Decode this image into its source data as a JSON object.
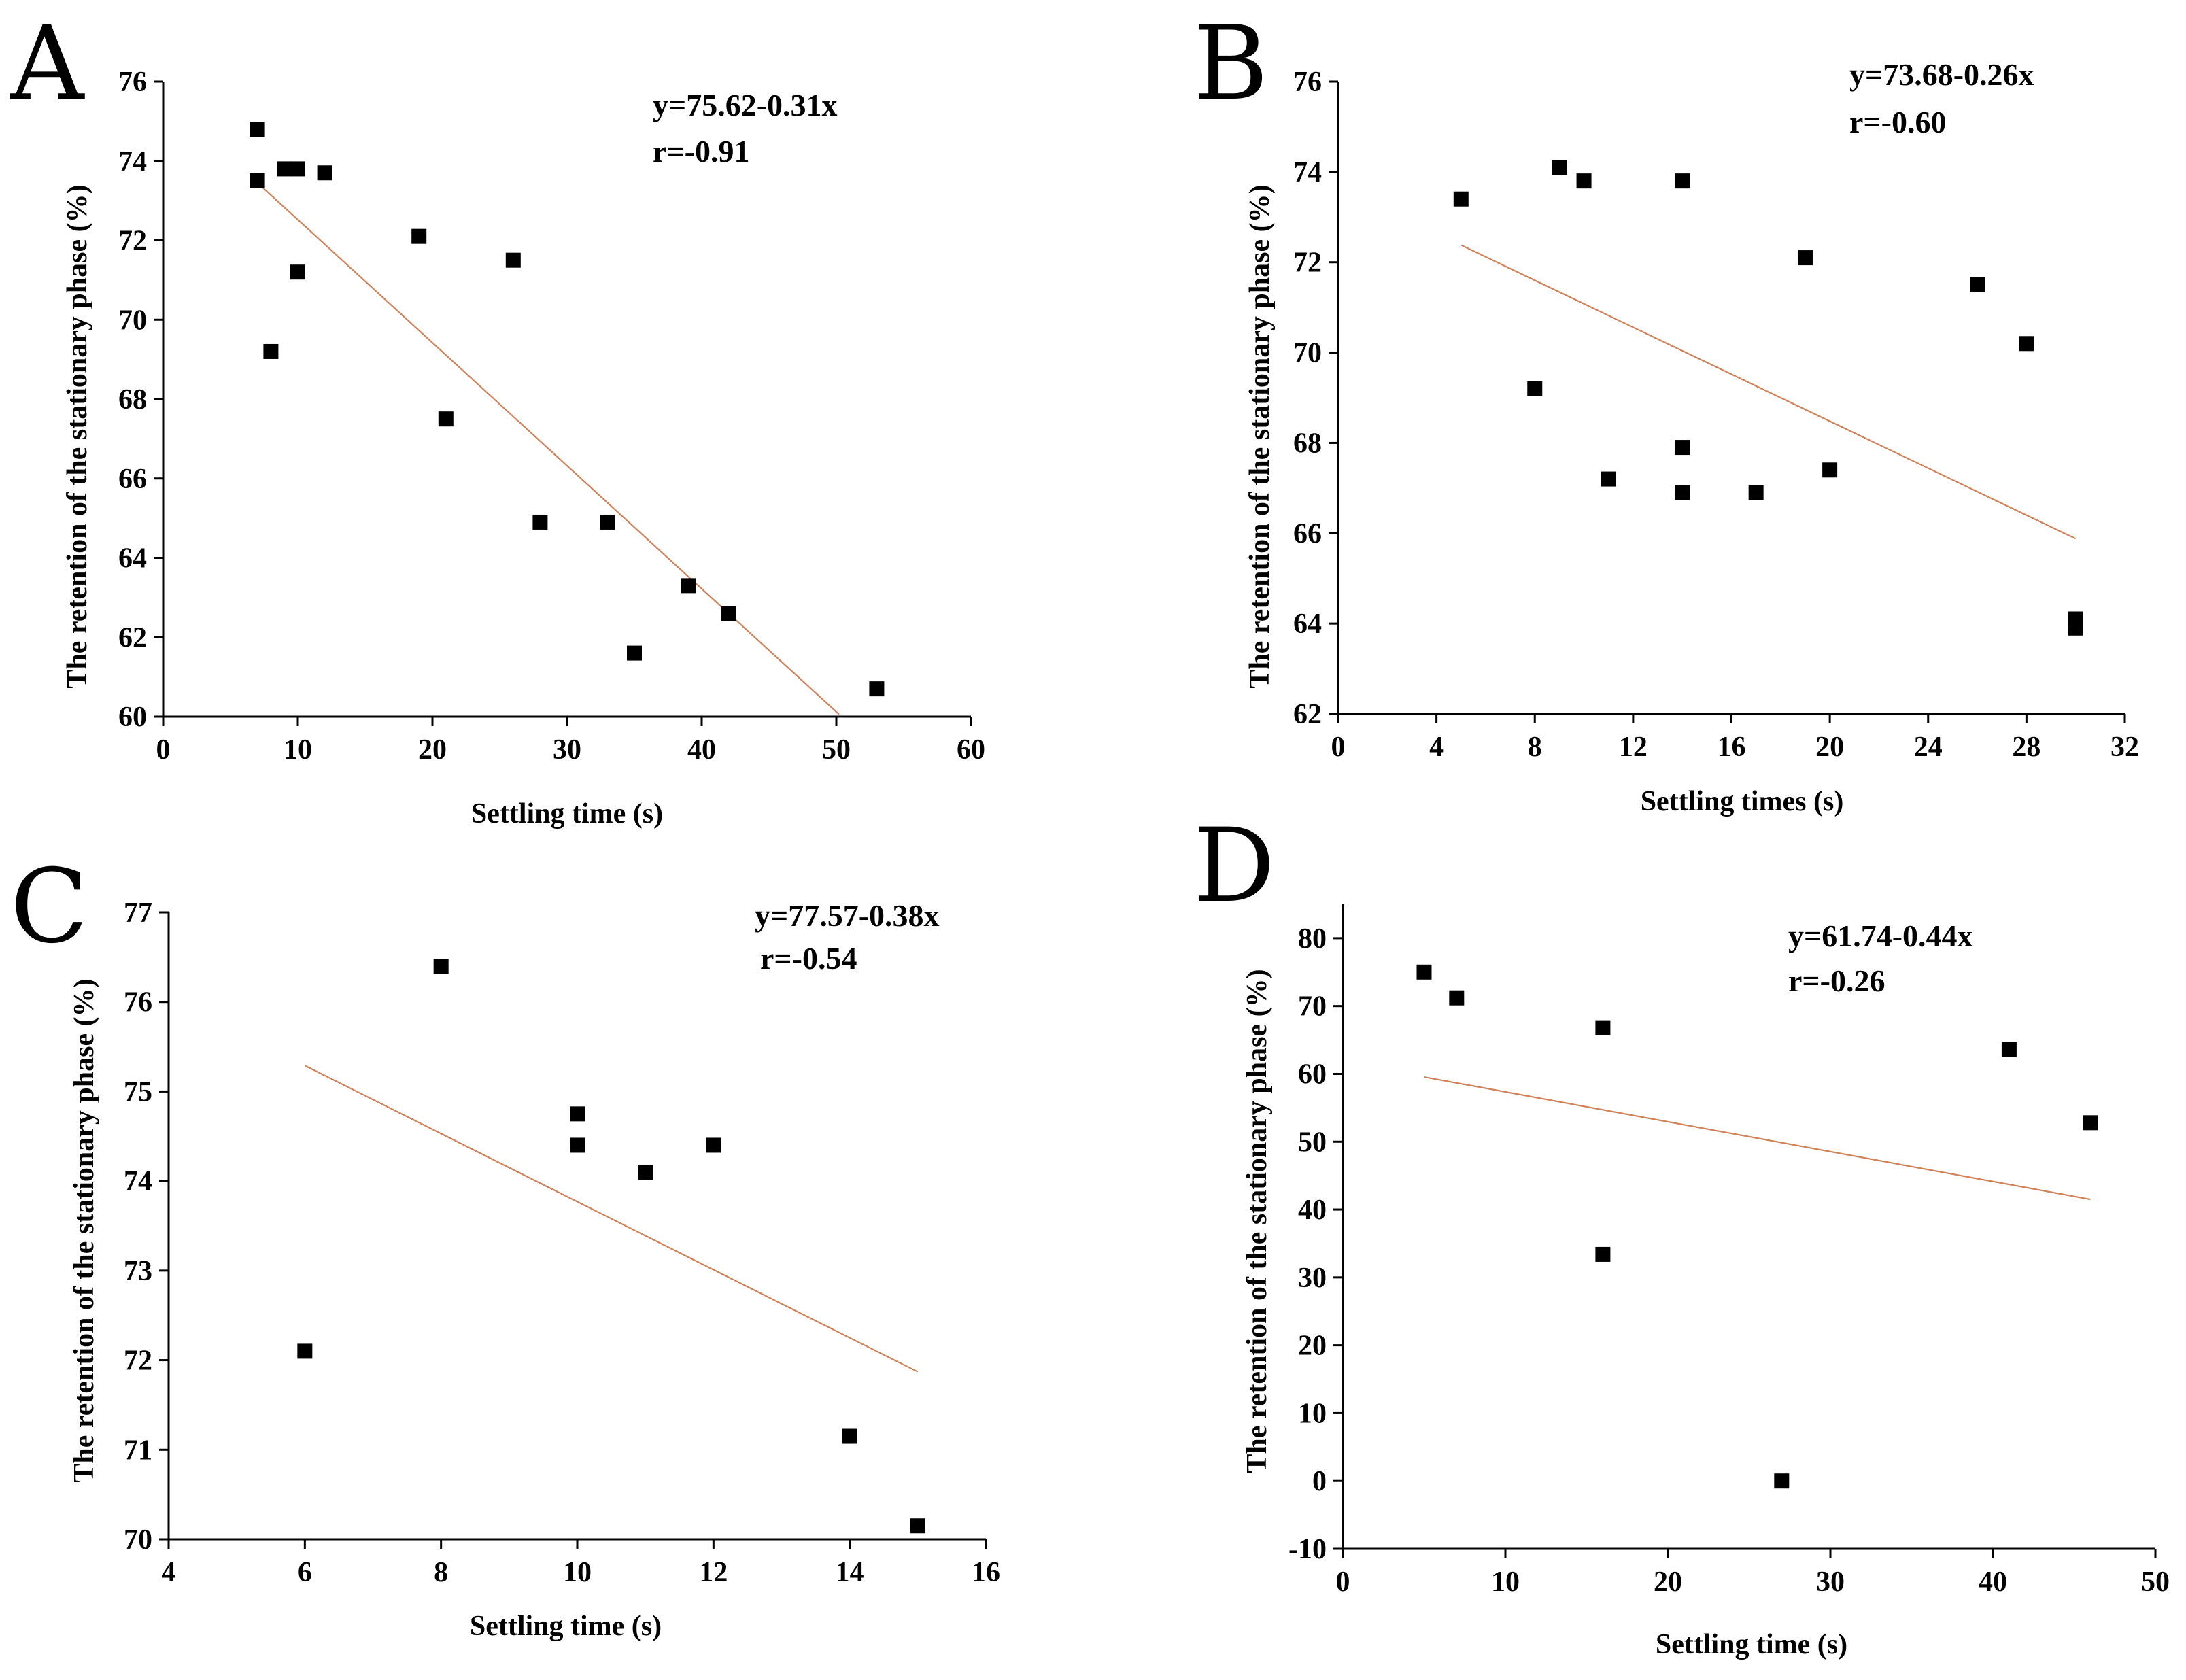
{
  "chart_data": [
    {
      "type": "scatter",
      "panel": "A",
      "xlabel": "Settling time (s)",
      "ylabel": "The retention of the stationary phase (%)",
      "xlim": [
        0,
        60
      ],
      "ylim": [
        60,
        76
      ],
      "xticks": [
        "0",
        "10",
        "20",
        "30",
        "40",
        "50",
        "60"
      ],
      "yticks": [
        "60",
        "62",
        "64",
        "66",
        "68",
        "70",
        "72",
        "74",
        "76"
      ],
      "equation": "y=75.62-0.31x",
      "r": "r=-0.91",
      "fit": {
        "intercept": 75.62,
        "slope": -0.31,
        "x_range": [
          7,
          50.2
        ]
      },
      "points": [
        {
          "x": 7,
          "y": 74.8
        },
        {
          "x": 7,
          "y": 73.5
        },
        {
          "x": 8,
          "y": 69.2
        },
        {
          "x": 9,
          "y": 73.8
        },
        {
          "x": 10,
          "y": 73.8
        },
        {
          "x": 10,
          "y": 71.2
        },
        {
          "x": 12,
          "y": 73.7
        },
        {
          "x": 19,
          "y": 72.1
        },
        {
          "x": 21,
          "y": 67.5
        },
        {
          "x": 26,
          "y": 71.5
        },
        {
          "x": 28,
          "y": 64.9
        },
        {
          "x": 33,
          "y": 64.9
        },
        {
          "x": 35,
          "y": 61.6
        },
        {
          "x": 39,
          "y": 63.3
        },
        {
          "x": 42,
          "y": 62.6
        },
        {
          "x": 53,
          "y": 60.7
        }
      ]
    },
    {
      "type": "scatter",
      "panel": "B",
      "xlabel": "Settling times (s)",
      "ylabel": "The retention of the stationary phase (%)",
      "xlim": [
        0,
        32
      ],
      "ylim": [
        62,
        76
      ],
      "xticks": [
        "0",
        "4",
        "8",
        "12",
        "16",
        "20",
        "24",
        "28",
        "32"
      ],
      "yticks": [
        "62",
        "64",
        "66",
        "68",
        "70",
        "72",
        "74",
        "76"
      ],
      "equation": "y=73.68-0.26x",
      "r": "r=-0.60",
      "fit": {
        "intercept": 73.68,
        "slope": -0.26,
        "x_range": [
          5,
          30
        ]
      },
      "points": [
        {
          "x": 5,
          "y": 73.4
        },
        {
          "x": 8,
          "y": 69.2
        },
        {
          "x": 9,
          "y": 74.1
        },
        {
          "x": 10,
          "y": 73.8
        },
        {
          "x": 11,
          "y": 67.2
        },
        {
          "x": 14,
          "y": 73.8
        },
        {
          "x": 14,
          "y": 67.9
        },
        {
          "x": 14,
          "y": 66.9
        },
        {
          "x": 17,
          "y": 66.9
        },
        {
          "x": 19,
          "y": 72.1
        },
        {
          "x": 20,
          "y": 67.4
        },
        {
          "x": 26,
          "y": 71.5
        },
        {
          "x": 28,
          "y": 70.2
        },
        {
          "x": 30,
          "y": 64.1
        },
        {
          "x": 30,
          "y": 63.9
        }
      ]
    },
    {
      "type": "scatter",
      "panel": "C",
      "xlabel": "Settling time (s)",
      "ylabel": "The retention of the stationary phase (%)",
      "xlim": [
        4,
        16
      ],
      "ylim": [
        70,
        77
      ],
      "xticks": [
        "4",
        "6",
        "8",
        "10",
        "12",
        "14",
        "16"
      ],
      "yticks": [
        "70",
        "71",
        "72",
        "73",
        "74",
        "75",
        "76",
        "77"
      ],
      "equation": "y=77.57-0.38x",
      "r": "r=-0.54",
      "fit": {
        "intercept": 77.57,
        "slope": -0.38,
        "x_range": [
          6,
          15
        ]
      },
      "points": [
        {
          "x": 6,
          "y": 72.1
        },
        {
          "x": 8,
          "y": 76.4
        },
        {
          "x": 10,
          "y": 74.75
        },
        {
          "x": 10,
          "y": 74.4
        },
        {
          "x": 11,
          "y": 74.1
        },
        {
          "x": 12,
          "y": 74.4
        },
        {
          "x": 14,
          "y": 71.15
        },
        {
          "x": 15,
          "y": 70.15
        }
      ]
    },
    {
      "type": "scatter",
      "panel": "D",
      "xlabel": "Settling time (s)",
      "ylabel": "The retention of the stationary phase (%)",
      "xlim": [
        0,
        50
      ],
      "ylim": [
        -10,
        85
      ],
      "xticks": [
        "0",
        "10",
        "20",
        "30",
        "40",
        "50"
      ],
      "yticks": [
        "-10",
        "0",
        "10",
        "20",
        "30",
        "40",
        "50",
        "60",
        "70",
        "80"
      ],
      "equation": "y=61.74-0.44x",
      "r": "r=-0.26",
      "fit": {
        "intercept": 61.74,
        "slope": -0.44,
        "x_range": [
          5,
          46
        ]
      },
      "points": [
        {
          "x": 5,
          "y": 75
        },
        {
          "x": 7,
          "y": 71.2
        },
        {
          "x": 16,
          "y": 66.8
        },
        {
          "x": 16,
          "y": 33.4
        },
        {
          "x": 27,
          "y": 0
        },
        {
          "x": 41,
          "y": 63.6
        },
        {
          "x": 46,
          "y": 52.8
        }
      ]
    }
  ]
}
